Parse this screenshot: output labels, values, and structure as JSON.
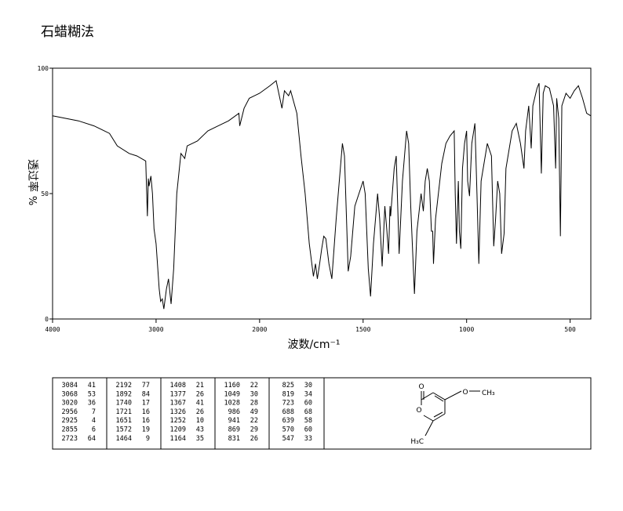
{
  "chart_data": {
    "type": "line",
    "title": "石蜡糊法",
    "x_label": "波数/cm⁻¹",
    "y_label": "透过率",
    "y_unit": "%",
    "xlim": [
      4000,
      400
    ],
    "xbreak": 2000,
    "ylim": [
      0,
      100
    ],
    "xticks": [
      4000,
      3000,
      2000,
      1500,
      1000,
      500
    ],
    "yticks": [
      0,
      50,
      100
    ],
    "color": "#000000",
    "x": [
      4000,
      3750,
      3600,
      3450,
      3375,
      3260,
      3185,
      3100,
      3084,
      3075,
      3068,
      3050,
      3035,
      3020,
      3000,
      2970,
      2956,
      2940,
      2925,
      2900,
      2880,
      2855,
      2830,
      2800,
      2760,
      2723,
      2700,
      2600,
      2500,
      2400,
      2300,
      2200,
      2192,
      2150,
      2100,
      2050,
      2000,
      1950,
      1920,
      1892,
      1880,
      1860,
      1850,
      1820,
      1800,
      1780,
      1760,
      1740,
      1730,
      1721,
      1710,
      1700,
      1690,
      1680,
      1665,
      1651,
      1630,
      1610,
      1600,
      1590,
      1572,
      1560,
      1540,
      1500,
      1490,
      1475,
      1464,
      1450,
      1430,
      1420,
      1408,
      1395,
      1385,
      1377,
      1370,
      1367,
      1350,
      1340,
      1326,
      1310,
      1290,
      1280,
      1270,
      1252,
      1240,
      1220,
      1209,
      1200,
      1190,
      1180,
      1170,
      1164,
      1160,
      1150,
      1120,
      1100,
      1080,
      1060,
      1055,
      1049,
      1040,
      1035,
      1028,
      1020,
      1010,
      1000,
      995,
      986,
      975,
      960,
      950,
      941,
      930,
      900,
      880,
      869,
      860,
      850,
      840,
      831,
      825,
      819,
      810,
      780,
      760,
      740,
      723,
      715,
      700,
      688,
      680,
      660,
      650,
      639,
      630,
      620,
      600,
      580,
      570,
      565,
      555,
      547,
      540,
      520,
      500,
      480,
      460,
      440,
      420,
      400
    ],
    "values": [
      81,
      79,
      77,
      74,
      69,
      66,
      65,
      63,
      41,
      56,
      53,
      57,
      50,
      36,
      30,
      12,
      7,
      8,
      4,
      12,
      16,
      6,
      20,
      50,
      66,
      64,
      69,
      71,
      75,
      77,
      79,
      82,
      77,
      84,
      88,
      89,
      90,
      93,
      95,
      84,
      91,
      89,
      91,
      82,
      65,
      50,
      30,
      17,
      22,
      16,
      22,
      28,
      33,
      32,
      22,
      16,
      40,
      60,
      70,
      65,
      19,
      25,
      45,
      55,
      50,
      20,
      9,
      30,
      50,
      40,
      21,
      45,
      35,
      26,
      45,
      41,
      60,
      65,
      26,
      55,
      75,
      70,
      45,
      10,
      35,
      50,
      43,
      55,
      60,
      55,
      35,
      35,
      22,
      40,
      62,
      70,
      73,
      75,
      50,
      30,
      55,
      35,
      28,
      60,
      70,
      75,
      55,
      49,
      70,
      78,
      50,
      22,
      55,
      70,
      65,
      29,
      40,
      55,
      50,
      26,
      30,
      34,
      60,
      75,
      78,
      70,
      60,
      75,
      85,
      68,
      85,
      92,
      94,
      58,
      90,
      93,
      92,
      85,
      60,
      88,
      80,
      33,
      85,
      90,
      88,
      91,
      93,
      88,
      82,
      81
    ]
  },
  "peak_table": [
    [
      [
        3084,
        41
      ],
      [
        3068,
        53
      ],
      [
        3020,
        36
      ],
      [
        2956,
        7
      ],
      [
        2925,
        4
      ],
      [
        2855,
        6
      ],
      [
        2723,
        64
      ]
    ],
    [
      [
        2192,
        77
      ],
      [
        1892,
        84
      ],
      [
        1740,
        17
      ],
      [
        1721,
        16
      ],
      [
        1651,
        16
      ],
      [
        1572,
        19
      ],
      [
        1464,
        9
      ]
    ],
    [
      [
        1408,
        21
      ],
      [
        1377,
        26
      ],
      [
        1367,
        41
      ],
      [
        1326,
        26
      ],
      [
        1252,
        10
      ],
      [
        1209,
        43
      ],
      [
        1164,
        35
      ]
    ],
    [
      [
        1160,
        22
      ],
      [
        1049,
        30
      ],
      [
        1028,
        28
      ],
      [
        986,
        49
      ],
      [
        941,
        22
      ],
      [
        869,
        29
      ],
      [
        831,
        26
      ]
    ],
    [
      [
        825,
        30
      ],
      [
        819,
        34
      ],
      [
        723,
        60
      ],
      [
        688,
        68
      ],
      [
        639,
        58
      ],
      [
        570,
        60
      ],
      [
        547,
        33
      ]
    ]
  ],
  "structure": {
    "labels": [
      "O",
      "O",
      "O",
      "CH₃",
      "H₃C"
    ]
  }
}
